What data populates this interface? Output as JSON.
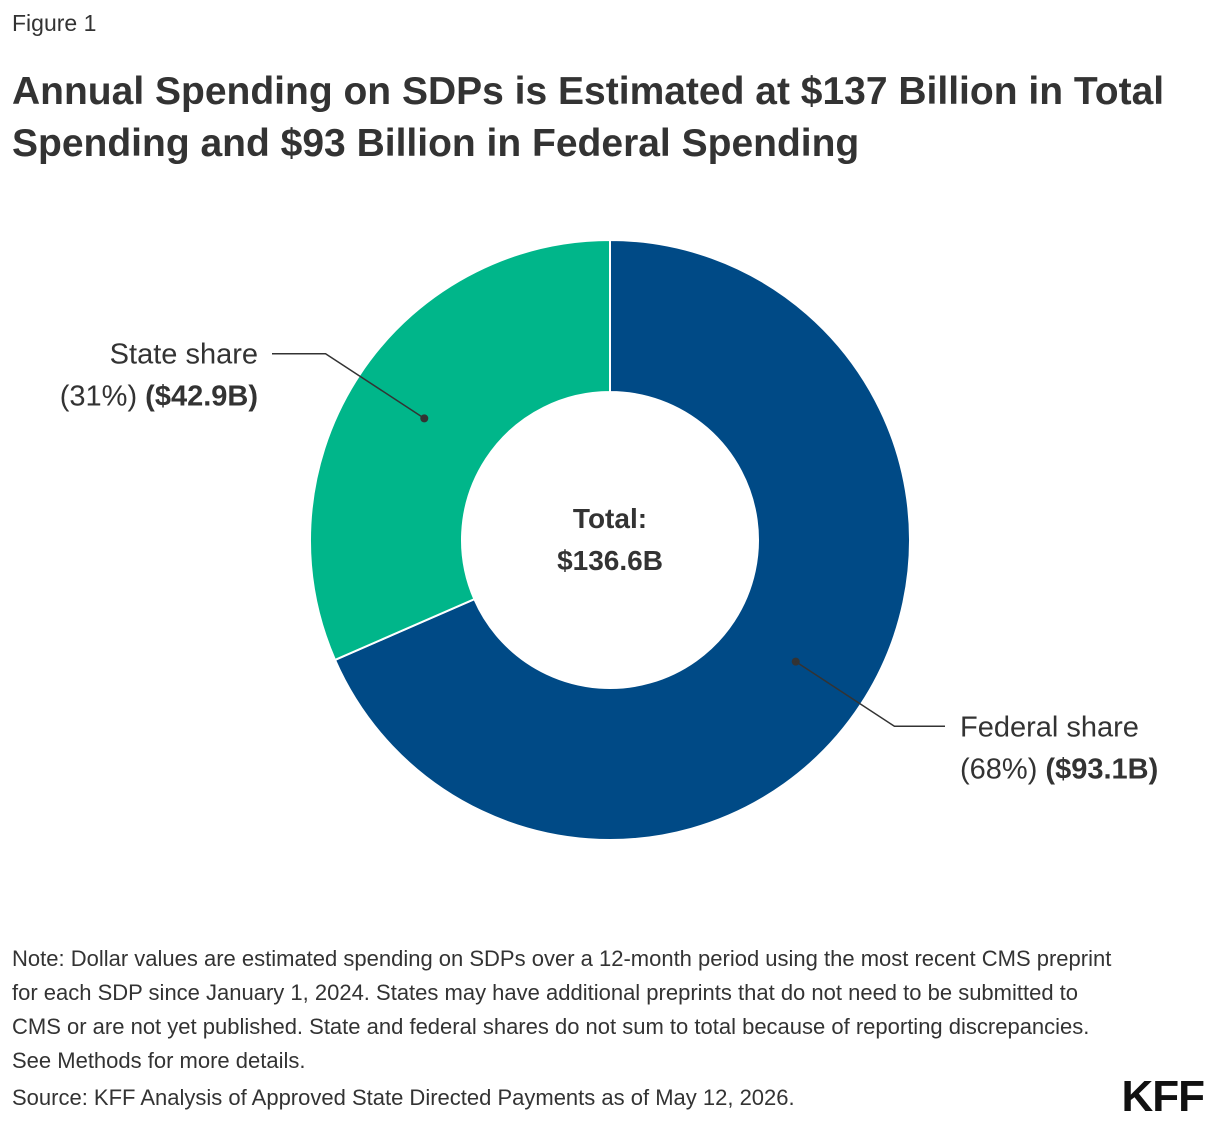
{
  "figure_label": "Figure 1",
  "title": "Annual Spending on SDPs is Estimated at $137 Billion in Total Spending and $93 Billion in Federal Spending",
  "note": "Note: Dollar values are estimated spending on SDPs over a 12-month period using the most recent CMS preprint for each SDP since January 1, 2024. States may have additional preprints that do not need to be submitted to CMS or are not yet published. State and federal shares do not sum to total because of reporting discrepancies. See Methods for more details.",
  "source": "Source: KFF Analysis of Approved State Directed Payments as of May 12, 2026.",
  "logo": "KFF",
  "chart_data": {
    "type": "pie",
    "variant": "donut",
    "center_label": [
      "Total:",
      "$136.6B"
    ],
    "slices": [
      {
        "name": "Federal share",
        "percent_label": "(68%)",
        "value_label": "($93.1B)",
        "value": 93.1,
        "color": "#004A86"
      },
      {
        "name": "State share",
        "percent_label": "(31%)",
        "value_label": "($42.9B)",
        "value": 42.9,
        "color": "#00B68A"
      }
    ],
    "start": "top",
    "direction": "clockwise"
  }
}
